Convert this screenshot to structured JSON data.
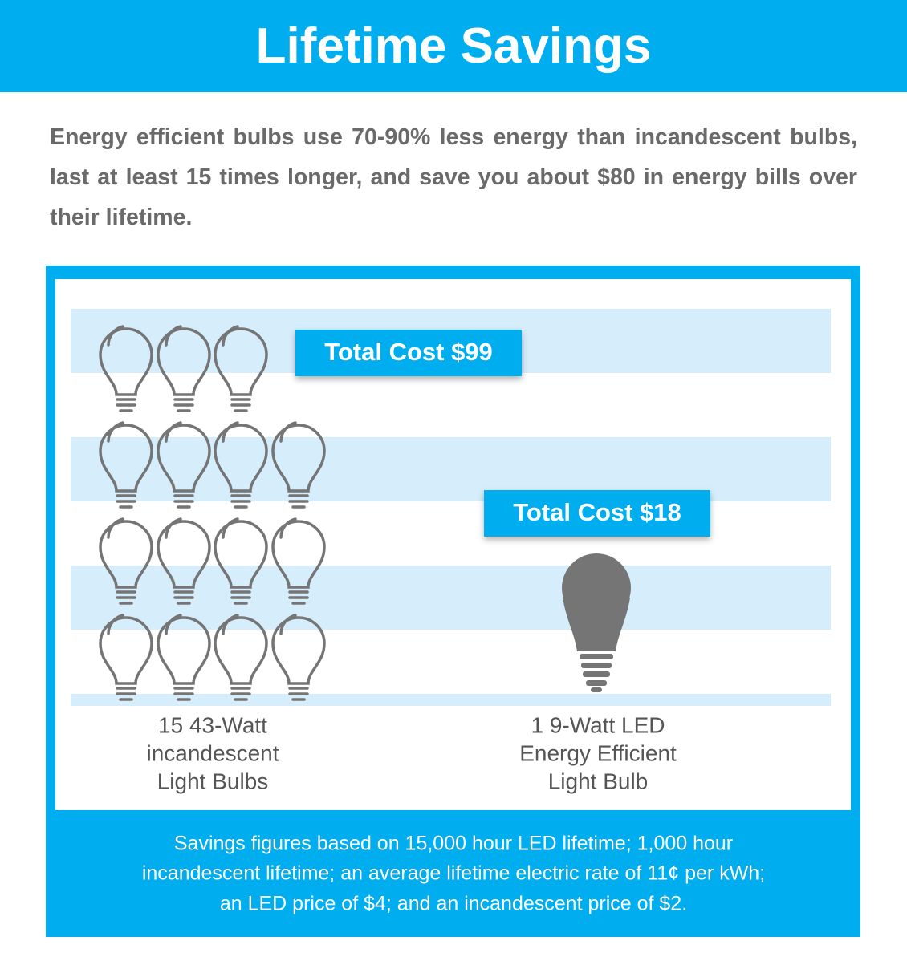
{
  "header": {
    "title": "Lifetime Savings"
  },
  "intro": {
    "text": "Energy efficient bulbs use 70-90% less energy than incandescent bulbs, last at least 15 times longer, and save you about $80 in energy bills over their lifetime."
  },
  "comparison": {
    "items": [
      {
        "cost_label": "Total Cost $99",
        "caption": [
          "15 43-Watt",
          "incandescent",
          "Light Bulbs"
        ]
      },
      {
        "cost_label": "Total Cost $18",
        "caption": [
          "1 9-Watt LED",
          "Energy Efficient",
          "Light Bulb"
        ]
      }
    ]
  },
  "footnote": {
    "lines": [
      "Savings figures based on 15,000 hour LED lifetime; 1,000 hour",
      "incandescent lifetime; an average lifetime electric rate of 11¢ per kWh;",
      "an LED price of $4; and an incandescent price of $2."
    ]
  }
}
